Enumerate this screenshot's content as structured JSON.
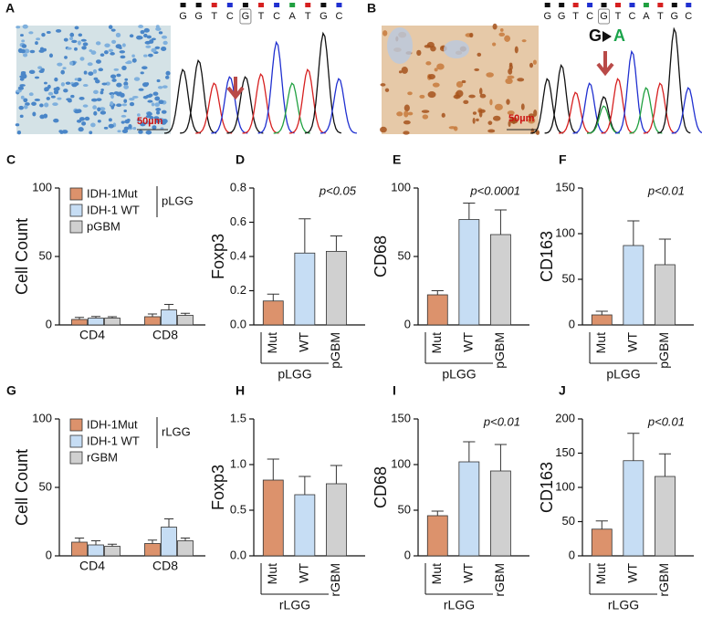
{
  "figure": {
    "panel_a": {
      "label": "A",
      "scale": "50µm",
      "sequence": [
        "G",
        "G",
        "T",
        "C",
        "G",
        "T",
        "C",
        "A",
        "T",
        "G",
        "C"
      ]
    },
    "panel_b": {
      "label": "B",
      "scale": "50µm",
      "sequence": [
        "G",
        "G",
        "T",
        "C",
        "G",
        "T",
        "C",
        "A",
        "T",
        "G",
        "C"
      ],
      "mutation_from": "G",
      "mutation_to": "A"
    }
  },
  "chart_data": [
    {
      "type": "grouped_bar",
      "panel": "C",
      "ylabel": "Cell Count",
      "categories": [
        "CD4",
        "CD8"
      ],
      "series": [
        {
          "name": "IDH-1Mut",
          "color": "#dc926c",
          "values": [
            4,
            6
          ],
          "errors": [
            1.5,
            2
          ]
        },
        {
          "name": "IDH-1 WT",
          "color": "#c6ddf4",
          "values": [
            5,
            11
          ],
          "errors": [
            1.2,
            4
          ]
        },
        {
          "name": "pGBM",
          "color": "#d0d0d0",
          "values": [
            5,
            7
          ],
          "errors": [
            1,
            1.5
          ]
        }
      ],
      "legend_group": "pLGG",
      "ylim": [
        0,
        100
      ],
      "yticks": [
        0,
        50,
        100
      ]
    },
    {
      "type": "bar",
      "panel": "D",
      "ylabel": "Foxp3",
      "annotation": "p<0.05",
      "categories": [
        "Mut",
        "WT",
        "pGBM"
      ],
      "values": [
        0.14,
        0.42,
        0.43
      ],
      "errors": [
        0.04,
        0.2,
        0.09
      ],
      "colors": [
        "#dc926c",
        "#c6ddf4",
        "#d0d0d0"
      ],
      "group_label": "pLGG",
      "ylim": [
        0,
        0.8
      ],
      "yticks": [
        {
          "value": 0,
          "label": "0.0"
        },
        0.2,
        0.4,
        0.6,
        0.8
      ]
    },
    {
      "type": "bar",
      "panel": "E",
      "ylabel": "CD68",
      "annotation": "p<0.0001",
      "categories": [
        "Mut",
        "WT",
        "pGBM"
      ],
      "values": [
        22,
        77,
        66
      ],
      "errors": [
        3,
        12,
        18
      ],
      "colors": [
        "#dc926c",
        "#c6ddf4",
        "#d0d0d0"
      ],
      "group_label": "pLGG",
      "ylim": [
        0,
        100
      ],
      "yticks": [
        0,
        50,
        100
      ]
    },
    {
      "type": "bar",
      "panel": "F",
      "ylabel": "CD163",
      "annotation": "p<0.01",
      "categories": [
        "Mut",
        "WT",
        "pGBM"
      ],
      "values": [
        11,
        87,
        66
      ],
      "errors": [
        4,
        27,
        28
      ],
      "colors": [
        "#dc926c",
        "#c6ddf4",
        "#d0d0d0"
      ],
      "group_label": "pLGG",
      "ylim": [
        0,
        150
      ],
      "yticks": [
        0,
        50,
        100,
        150
      ]
    },
    {
      "type": "grouped_bar",
      "panel": "G",
      "ylabel": "Cell Count",
      "categories": [
        "CD4",
        "CD8"
      ],
      "series": [
        {
          "name": "IDH-1Mut",
          "color": "#dc926c",
          "values": [
            10,
            9
          ],
          "errors": [
            3,
            2.5
          ]
        },
        {
          "name": "IDH-1 WT",
          "color": "#c6ddf4",
          "values": [
            8,
            21
          ],
          "errors": [
            3,
            6
          ]
        },
        {
          "name": "rGBM",
          "color": "#d0d0d0",
          "values": [
            7,
            11
          ],
          "errors": [
            1.5,
            2
          ]
        }
      ],
      "legend_group": "rLGG",
      "ylim": [
        0,
        100
      ],
      "yticks": [
        0,
        50,
        100
      ]
    },
    {
      "type": "bar",
      "panel": "H",
      "ylabel": "Foxp3",
      "categories": [
        "Mut",
        "WT",
        "rGBM"
      ],
      "values": [
        0.83,
        0.67,
        0.79
      ],
      "errors": [
        0.23,
        0.2,
        0.2
      ],
      "colors": [
        "#dc926c",
        "#c6ddf4",
        "#d0d0d0"
      ],
      "group_label": "rLGG",
      "ylim": [
        0,
        1.5
      ],
      "yticks": [
        {
          "value": 0,
          "label": "0.0"
        },
        0.5,
        {
          "value": 1,
          "label": "1.0"
        },
        1.5
      ]
    },
    {
      "type": "bar",
      "panel": "I",
      "ylabel": "CD68",
      "annotation": "p<0.01",
      "categories": [
        "Mut",
        "WT",
        "rGBM"
      ],
      "values": [
        44,
        103,
        93
      ],
      "errors": [
        5,
        22,
        29
      ],
      "colors": [
        "#dc926c",
        "#c6ddf4",
        "#d0d0d0"
      ],
      "group_label": "rLGG",
      "ylim": [
        0,
        150
      ],
      "yticks": [
        0,
        50,
        100,
        150
      ]
    },
    {
      "type": "bar",
      "panel": "J",
      "ylabel": "CD163",
      "annotation": "p<0.01",
      "categories": [
        "Mut",
        "WT",
        "rGBM"
      ],
      "values": [
        39,
        139,
        116
      ],
      "errors": [
        12,
        40,
        33
      ],
      "colors": [
        "#dc926c",
        "#c6ddf4",
        "#d0d0d0"
      ],
      "group_label": "rLGG",
      "ylim": [
        0,
        200
      ],
      "yticks": [
        0,
        50,
        100,
        150,
        200
      ]
    }
  ]
}
